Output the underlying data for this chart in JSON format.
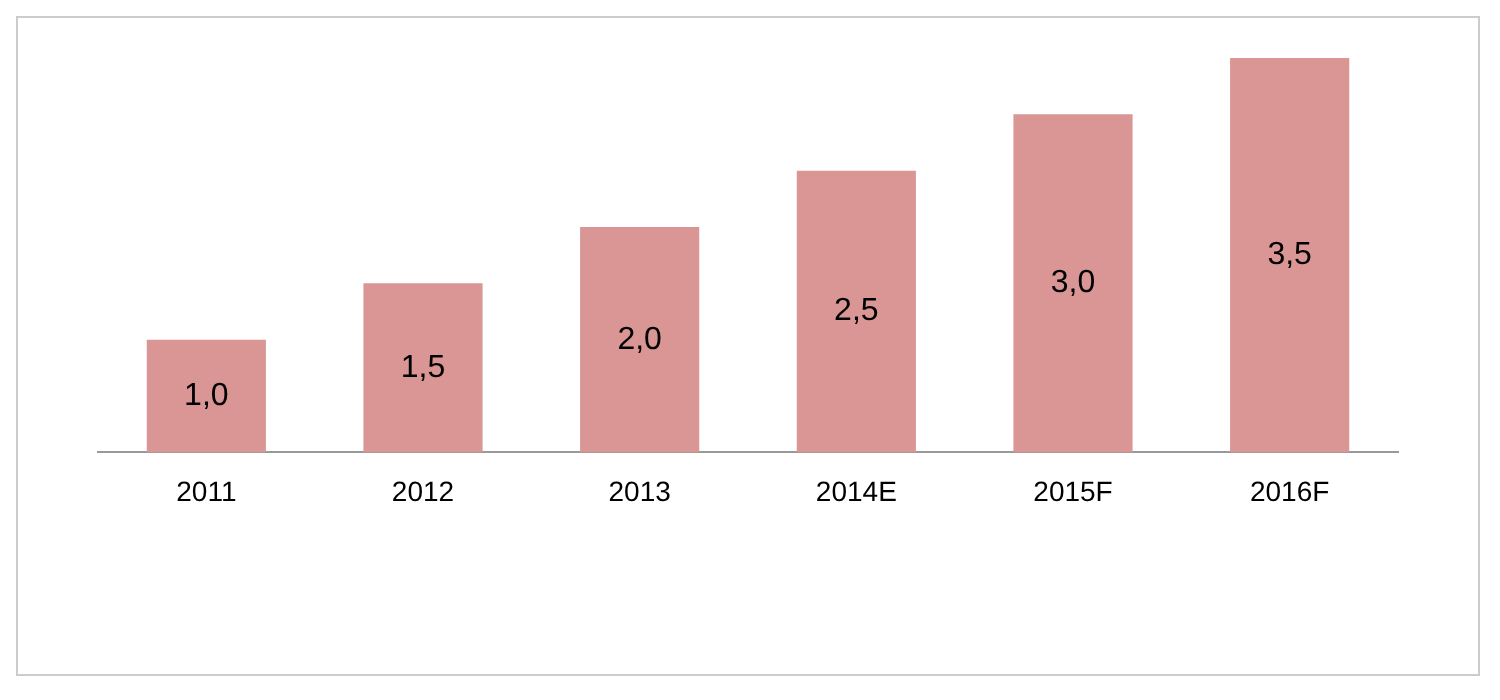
{
  "chart_data": {
    "type": "bar",
    "categories": [
      "2011",
      "2012",
      "2013",
      "2014E",
      "2015F",
      "2016F"
    ],
    "values": [
      1.0,
      1.5,
      2.0,
      2.5,
      3.0,
      3.5
    ],
    "value_labels": [
      "1,0",
      "1,5",
      "2,0",
      "2,5",
      "3,0",
      "3,5"
    ],
    "color": "#d99694",
    "grid": false,
    "legend": false
  }
}
